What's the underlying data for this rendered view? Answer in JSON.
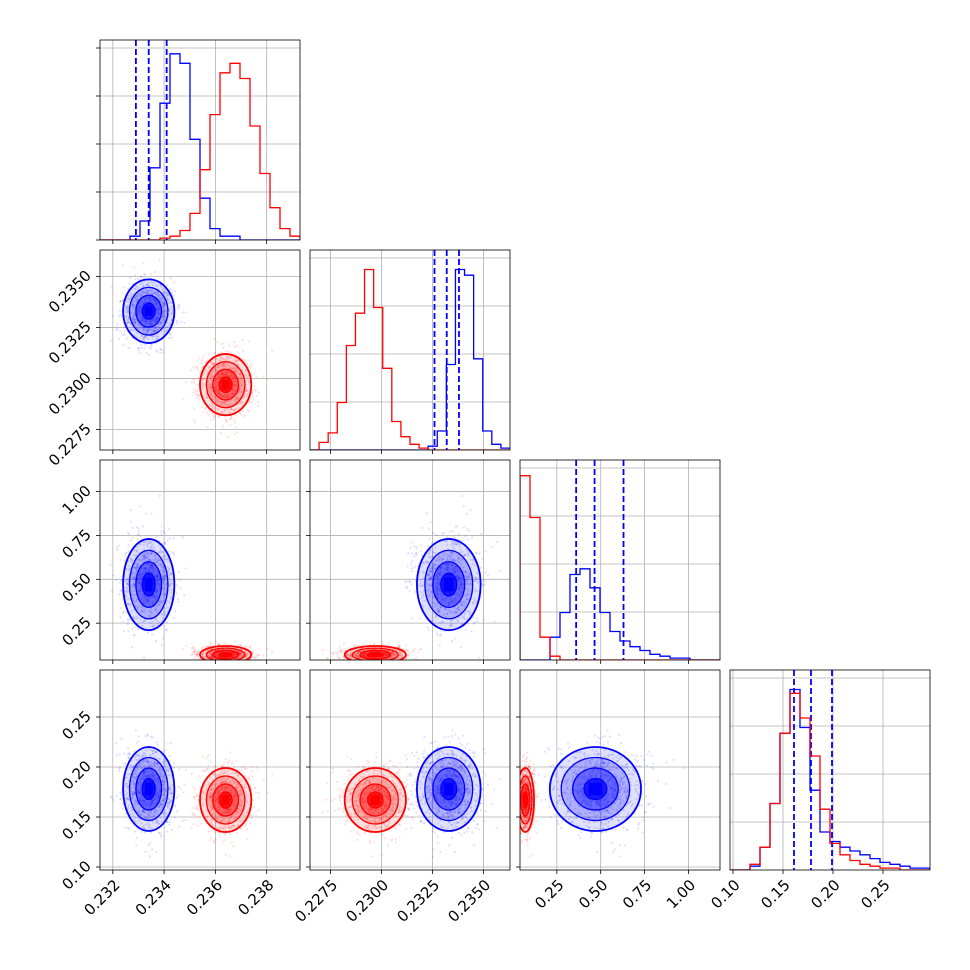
{
  "chart_data": {
    "type": "corner",
    "title": "",
    "grid": true,
    "parameters": [
      {
        "range": [
          0.2315,
          0.2393
        ],
        "ticks": [
          0.232,
          0.234,
          0.236,
          0.238
        ],
        "tick_labels": [
          "0.232",
          "0.234",
          "0.236",
          "0.238"
        ]
      },
      {
        "range": [
          0.2265,
          0.2363
        ],
        "ticks": [
          0.2275,
          0.23,
          0.2325,
          0.235
        ],
        "tick_labels": [
          "0.2275",
          "0.2300",
          "0.2325",
          "0.2350"
        ]
      },
      {
        "range": [
          0.04,
          1.18
        ],
        "ticks": [
          0.25,
          0.5,
          0.75,
          1.0
        ],
        "tick_labels": [
          "0.25",
          "0.50",
          "0.75",
          "1.00"
        ]
      },
      {
        "range": [
          0.097,
          0.297
        ],
        "ticks": [
          0.1,
          0.15,
          0.2,
          0.25
        ],
        "tick_labels": [
          "0.10",
          "0.15",
          "0.20",
          "0.25"
        ]
      }
    ],
    "series": [
      {
        "color": "#0000ff",
        "means": [
          0.2334,
          0.2333,
          0.47,
          0.178
        ],
        "sigmas": [
          0.0005,
          0.00078,
          0.13,
          0.021
        ],
        "quantiles": [
          [
            0.2329,
            0.2334,
            0.2341
          ],
          [
            0.2326,
            0.2332,
            0.2338
          ],
          [
            0.36,
            0.465,
            0.63
          ],
          [
            0.161,
            0.178,
            0.199
          ]
        ],
        "histograms": [
          {
            "edges": [
              0.2315,
              0.2393
            ],
            "counts": [
              0,
              0,
              0,
              0.02,
              0.1,
              0.38,
              0.72,
              0.98,
              0.93,
              0.53,
              0.22,
              0.06,
              0.02,
              0.02,
              0,
              0,
              0,
              0,
              0,
              0
            ]
          },
          {
            "edges": [
              0.2265,
              0.2363
            ],
            "counts": [
              0,
              0,
              0,
              0,
              0,
              0,
              0,
              0,
              0,
              0,
              0,
              0,
              0,
              0.02,
              0.1,
              0.45,
              0.95,
              0.92,
              0.48,
              0.1,
              0.03,
              0.01
            ]
          },
          {
            "edges": [
              0.04,
              1.18
            ],
            "counts": [
              0,
              0,
              0,
              0.12,
              0.25,
              0.45,
              0.48,
              0.38,
              0.25,
              0.15,
              0.1,
              0.07,
              0.05,
              0.03,
              0.02,
              0.01,
              0.01,
              0,
              0,
              0
            ]
          },
          {
            "edges": [
              0.097,
              0.297
            ],
            "counts": [
              0,
              0,
              0.02,
              0.12,
              0.35,
              0.72,
              0.95,
              0.75,
              0.42,
              0.2,
              0.15,
              0.12,
              0.1,
              0.08,
              0.06,
              0.04,
              0.03,
              0.02,
              0.01,
              0.01
            ]
          }
        ]
      },
      {
        "color": "#ff0000",
        "means": [
          0.2364,
          0.2297,
          0.07,
          0.167
        ],
        "sigmas": [
          0.0005,
          0.00075,
          0.025,
          0.016
        ],
        "quantiles": [],
        "histograms": [
          {
            "edges": [
              0.2315,
              0.2393
            ],
            "counts": [
              0,
              0,
              0,
              0,
              0,
              0,
              0.01,
              0.02,
              0.05,
              0.14,
              0.37,
              0.66,
              0.88,
              0.93,
              0.85,
              0.6,
              0.35,
              0.17,
              0.06,
              0.02
            ]
          },
          {
            "edges": [
              0.2265,
              0.2363
            ],
            "counts": [
              0,
              0.04,
              0.09,
              0.25,
              0.55,
              0.72,
              0.95,
              0.75,
              0.43,
              0.15,
              0.07,
              0.03,
              0.01,
              0,
              0,
              0,
              0,
              0,
              0,
              0,
              0,
              0
            ]
          },
          {
            "edges": [
              0.04,
              1.18
            ],
            "counts": [
              0.97,
              0.75,
              0.12,
              0.02,
              0,
              0,
              0,
              0,
              0,
              0,
              0,
              0,
              0,
              0,
              0,
              0,
              0,
              0,
              0,
              0
            ]
          },
          {
            "edges": [
              0.097,
              0.297
            ],
            "counts": [
              0,
              0,
              0.03,
              0.12,
              0.35,
              0.72,
              0.93,
              0.8,
              0.6,
              0.32,
              0.14,
              0.08,
              0.05,
              0.03,
              0.02,
              0.01,
              0.01,
              0,
              0,
              0
            ]
          }
        ]
      }
    ]
  }
}
